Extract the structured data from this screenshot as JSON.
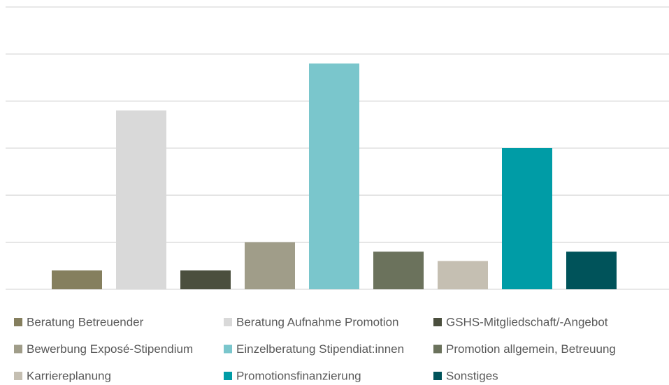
{
  "chart_data": {
    "type": "bar",
    "categories": [
      "Beratung Betreuender",
      "Beratung Aufnahme Promotion",
      "GSHS-Mitgliedschaft/-Angebot",
      "Bewerbung Exposé-Stipendium",
      "Einzelberatung Stipendiat:innen",
      "Promotion allgemein, Betreuung",
      "Karriereplanung",
      "Promotionsfinanzierung",
      "Sonstiges"
    ],
    "values": [
      0.4,
      3.8,
      0.4,
      1.0,
      4.8,
      0.8,
      0.6,
      3.0,
      0.8
    ],
    "colors": [
      "#857f5e",
      "#d9d9d9",
      "#4b4f3e",
      "#a09d89",
      "#7ac6cc",
      "#6b725c",
      "#c5bfb2",
      "#009ca6",
      "#00535a"
    ],
    "ylim": [
      0,
      6
    ],
    "yticks": [
      0,
      1,
      2,
      3,
      4,
      5,
      6
    ],
    "grid": true,
    "legend": "bottom"
  }
}
